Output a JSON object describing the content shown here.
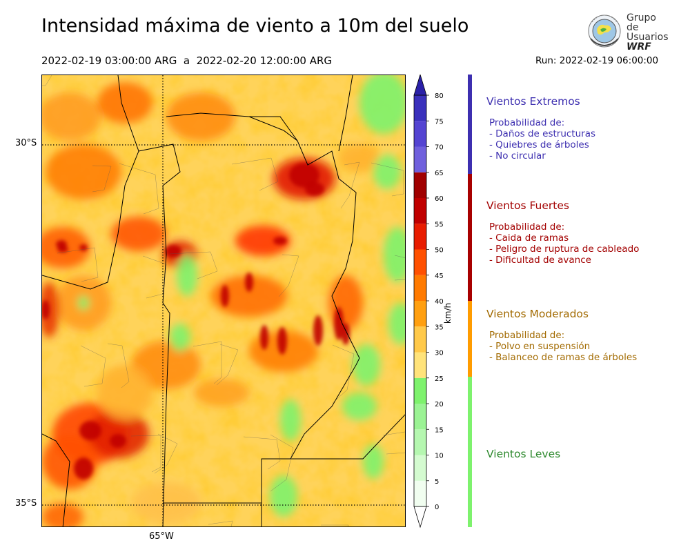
{
  "header": {
    "title": "Intensidad máxima de viento a 10m del suelo",
    "period": "2022-02-19 03:00:00 ARG  a  2022-02-20 12:00:00 ARG",
    "run": "Run: 2022-02-19 06:00:00"
  },
  "logo": {
    "line1": "Grupo de",
    "line2": "Usuarios",
    "line3": "WRF"
  },
  "map": {
    "lat_labels": [
      "30°S",
      "35°S"
    ],
    "lon_labels": [
      "65°W"
    ]
  },
  "colorbar": {
    "unit": "km/h",
    "ticks": [
      "0",
      "5",
      "10",
      "15",
      "20",
      "25",
      "30",
      "35",
      "40",
      "45",
      "50",
      "55",
      "60",
      "65",
      "70",
      "75",
      "80"
    ],
    "colors": [
      "#f1fef0",
      "#d4fbd0",
      "#b5f7b0",
      "#9bf394",
      "#7ef26d",
      "#ffe37a",
      "#ffc94a",
      "#ff9f10",
      "#ff7a00",
      "#ff5000",
      "#e81c00",
      "#c00000",
      "#a00000",
      "#7060dd",
      "#5444d2",
      "#3a30bc",
      "#2a20a8"
    ]
  },
  "legend": [
    {
      "title": "Vientos Extremos",
      "lines": [
        "Probabilidad de:",
        "- Daños de estructuras",
        "- Quiebres de árboles",
        "- No circular"
      ],
      "color": "#3d2fb0",
      "bar": "#3d2fb0"
    },
    {
      "title": "Vientos Fuertes",
      "lines": [
        "Probabilidad de:",
        "- Caida de ramas",
        "- Peligro de ruptura de cableado",
        "- Dificultad de avance"
      ],
      "color": "#a30000",
      "bar": "#a80000"
    },
    {
      "title": "Vientos Moderados",
      "lines": [
        "Probabilidad de:",
        "- Polvo en suspensión",
        "- Balanceo de ramas de árboles"
      ],
      "color": "#a26a00",
      "bar": "#ff9c00"
    },
    {
      "title": "Vientos Leves",
      "lines": [],
      "color": "#2f8a2f",
      "bar": "#7ef26d"
    }
  ]
}
